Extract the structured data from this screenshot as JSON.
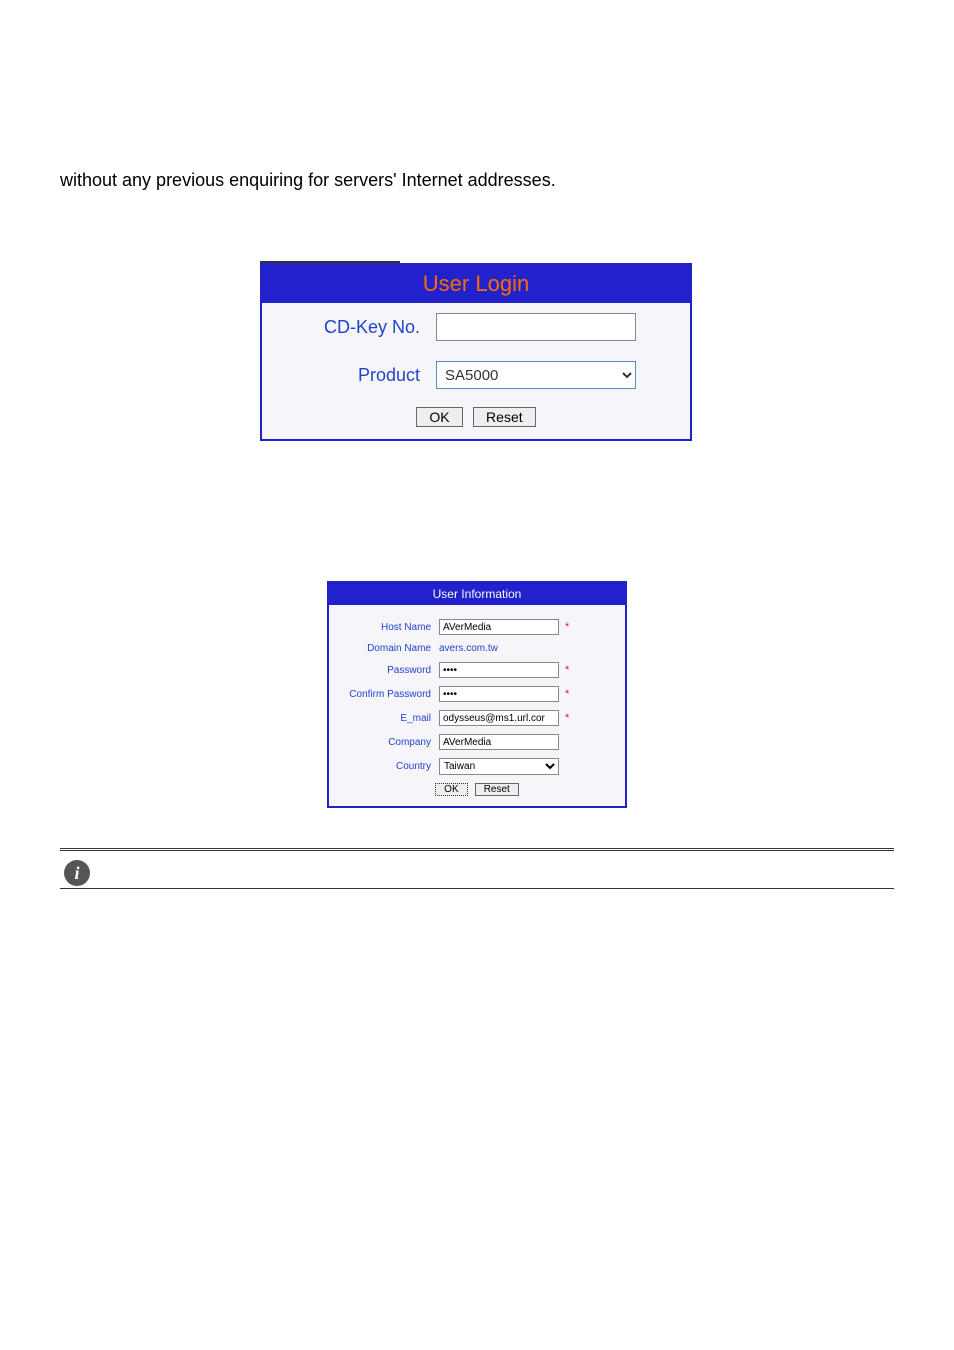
{
  "intro_text": "without any previous enquiring for servers' Internet addresses.",
  "login": {
    "header": "User Login",
    "cdkey_label": "CD-Key No.",
    "cdkey_value": "",
    "product_label": "Product",
    "product_value": "SA5000",
    "ok_label": "OK",
    "reset_label": "Reset"
  },
  "userinfo": {
    "header": "User Information",
    "hostname_label": "Host Name",
    "hostname_value": "AVerMedia",
    "domain_label": "Domain Name",
    "domain_value": "avers.com.tw",
    "password_label": "Password",
    "password_value": "****",
    "confirm_label": "Confirm Password",
    "confirm_value": "****",
    "email_label": "E_mail",
    "email_value": "odysseus@ms1.url.cor",
    "company_label": "Company",
    "company_value": "AVerMedia",
    "country_label": "Country",
    "country_value": "Taiwan",
    "ok_label": "OK",
    "reset_label": "Reset",
    "asterisk": "*"
  },
  "icons": {
    "info": "i"
  },
  "colors": {
    "header_bg": "#2222cc",
    "header_text": "#ff6a00",
    "label_text": "#2244cc",
    "panel_bg": "#f5f5fa",
    "asterisk": "#cc2222"
  }
}
